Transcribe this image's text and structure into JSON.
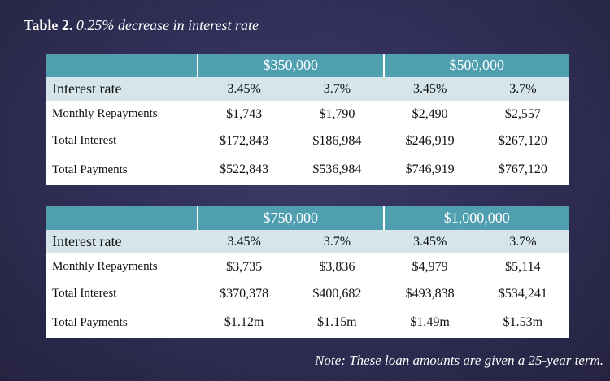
{
  "title": {
    "label": "Table 2.",
    "text": "0.25% decrease in interest rate"
  },
  "tables": [
    {
      "amounts": [
        "$350,000",
        "$500,000"
      ],
      "rate_label": "Interest rate",
      "rates": [
        "3.45%",
        "3.7%",
        "3.45%",
        "3.7%"
      ],
      "rows": [
        {
          "label": "Monthly Repayments",
          "values": [
            "$1,743",
            "$1,790",
            "$2,490",
            "$2,557"
          ]
        },
        {
          "label": "Total Interest",
          "values": [
            "$172,843",
            "$186,984",
            "$246,919",
            "$267,120"
          ]
        },
        {
          "label": "Total Payments",
          "values": [
            "$522,843",
            "$536,984",
            "$746,919",
            "$767,120"
          ]
        }
      ]
    },
    {
      "amounts": [
        "$750,000",
        "$1,000,000"
      ],
      "rate_label": "Interest rate",
      "rates": [
        "3.45%",
        "3.7%",
        "3.45%",
        "3.7%"
      ],
      "rows": [
        {
          "label": "Monthly Repayments",
          "values": [
            "$3,735",
            "$3,836",
            "$4,979",
            "$5,114"
          ]
        },
        {
          "label": "Total Interest",
          "values": [
            "$370,378",
            "$400,682",
            "$493,838",
            "$534,241"
          ]
        },
        {
          "label": "Total Payments",
          "values": [
            "$1.12m",
            "$1.15m",
            "$1.49m",
            "$1.53m"
          ]
        }
      ]
    }
  ],
  "note": "Note: These loan amounts are given a 25-year term.",
  "colors": {
    "header": "#4f9fb0",
    "rate_row": "#d5e5ea",
    "background": "#302e58"
  }
}
